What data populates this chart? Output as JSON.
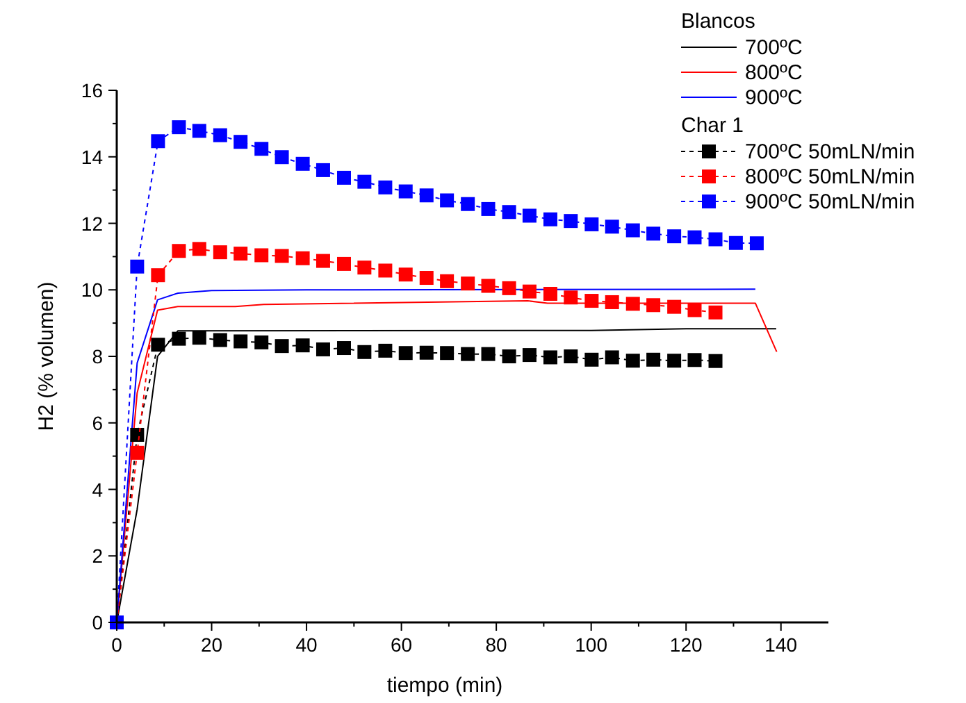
{
  "chart_data": {
    "type": "line",
    "xlabel": "tiempo (min)",
    "ylabel": "H2 (% volumen)",
    "legend_title": "Blancos",
    "annotations": [
      "Char 1"
    ],
    "legend": "top right",
    "grid": false,
    "xlim": [
      0,
      150
    ],
    "xticks": [
      0,
      {
        "value": 10,
        "label": null
      },
      20,
      {
        "value": 30,
        "label": null
      },
      40,
      {
        "value": 50,
        "label": null
      },
      60,
      {
        "value": 70,
        "label": null
      },
      80,
      {
        "value": 90,
        "label": null
      },
      100,
      {
        "value": 110,
        "label": null
      },
      120,
      {
        "value": 130,
        "label": null
      },
      140
    ],
    "ylim": [
      0,
      16
    ],
    "yticks": [
      0,
      {
        "value": 1,
        "label": null
      },
      2,
      {
        "value": 3,
        "label": null
      },
      4,
      {
        "value": 5,
        "label": null
      },
      6,
      {
        "value": 7,
        "label": null
      },
      8,
      {
        "value": 9,
        "label": null
      },
      10,
      {
        "value": 11,
        "label": null
      },
      12,
      {
        "value": 13,
        "label": null
      },
      14,
      {
        "value": 15,
        "label": null
      },
      16
    ],
    "series": [
      {
        "name": "700ºC",
        "color": "#000000",
        "marker": "none",
        "line_style": "solid",
        "x": [
          0,
          4.3,
          8.6,
          12.9,
          100,
          120,
          139
        ],
        "values": [
          0,
          3.4,
          8.0,
          8.77,
          8.78,
          8.83,
          8.83
        ]
      },
      {
        "name": "800ºC",
        "color": "#ff0000",
        "marker": "none",
        "line_style": "solid",
        "x": [
          0,
          4.3,
          8.6,
          12.9,
          25,
          31,
          86.6,
          90.8,
          134.6,
          139.1
        ],
        "values": [
          0,
          6.9,
          9.39,
          9.5,
          9.5,
          9.56,
          9.67,
          9.6,
          9.6,
          8.14
        ]
      },
      {
        "name": "900ºC",
        "color": "#0000ff",
        "marker": "none",
        "line_style": "solid",
        "x": [
          0,
          4.3,
          8.6,
          12.9,
          20,
          40,
          134.6
        ],
        "values": [
          0,
          7.8,
          9.7,
          9.9,
          9.98,
          10,
          10.02
        ]
      },
      {
        "name": "700ºC 50mLN/min",
        "color": "#000000",
        "marker": "square",
        "line_style": "dashed",
        "x": [
          0,
          4.3,
          8.7,
          13.1,
          17.4,
          21.8,
          26.1,
          30.5,
          34.8,
          39.2,
          43.5,
          47.9,
          52.2,
          56.6,
          60.9,
          65.3,
          69.6,
          74,
          78.3,
          82.7,
          87,
          91.4,
          95.7,
          100.1,
          104.4,
          108.8,
          113.1,
          117.5,
          121.8,
          126.2
        ],
        "values": [
          0,
          5.64,
          8.35,
          8.53,
          8.56,
          8.49,
          8.45,
          8.42,
          8.31,
          8.33,
          8.21,
          8.25,
          8.13,
          8.17,
          8.1,
          8.11,
          8.1,
          8.07,
          8.07,
          8.0,
          8.04,
          7.97,
          8.0,
          7.9,
          7.97,
          7.87,
          7.9,
          7.87,
          7.89,
          7.86
        ]
      },
      {
        "name": "800ºC 50mLN/min",
        "color": "#ff0000",
        "marker": "square",
        "line_style": "dashed",
        "x": [
          0,
          4.3,
          8.7,
          13.1,
          17.4,
          21.8,
          26.1,
          30.5,
          34.8,
          39.2,
          43.5,
          47.9,
          52.2,
          56.6,
          60.9,
          65.3,
          69.6,
          74,
          78.3,
          82.7,
          87,
          91.4,
          95.7,
          100.1,
          104.4,
          108.8,
          113.1,
          117.5,
          121.8,
          126.2
        ],
        "values": [
          0,
          5.1,
          10.44,
          11.17,
          11.23,
          11.13,
          11.09,
          11.04,
          11.02,
          10.95,
          10.87,
          10.78,
          10.67,
          10.58,
          10.46,
          10.36,
          10.26,
          10.19,
          10.12,
          10.05,
          9.95,
          9.88,
          9.77,
          9.67,
          9.63,
          9.58,
          9.54,
          9.49,
          9.39,
          9.32
        ]
      },
      {
        "name": "900ºC 50mLN/min",
        "color": "#0000ff",
        "marker": "square",
        "line_style": "dashed",
        "x": [
          0,
          4.3,
          8.7,
          13.1,
          17.4,
          21.8,
          26.1,
          30.5,
          34.8,
          39.2,
          43.5,
          47.9,
          52.2,
          56.6,
          60.9,
          65.3,
          69.6,
          74,
          78.3,
          82.7,
          87,
          91.4,
          95.7,
          100.1,
          104.4,
          108.8,
          113.1,
          117.5,
          121.8,
          126.2,
          130.5,
          134.9
        ],
        "values": [
          0,
          10.7,
          14.47,
          14.89,
          14.78,
          14.65,
          14.45,
          14.24,
          13.99,
          13.79,
          13.6,
          13.37,
          13.25,
          13.08,
          12.96,
          12.84,
          12.69,
          12.58,
          12.43,
          12.34,
          12.23,
          12.12,
          12.07,
          11.97,
          11.9,
          11.79,
          11.69,
          11.61,
          11.58,
          11.52,
          11.41,
          11.4
        ]
      }
    ]
  }
}
